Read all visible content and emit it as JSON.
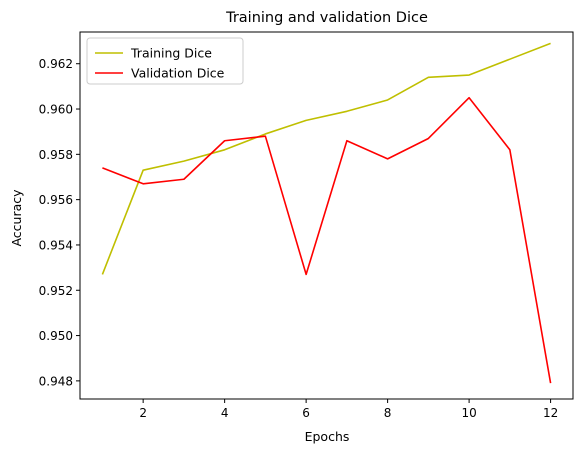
{
  "chart_data": {
    "type": "line",
    "title": "Training and validation Dice",
    "xlabel": "Epochs",
    "ylabel": "Accuracy",
    "x": [
      1,
      2,
      3,
      4,
      5,
      6,
      7,
      8,
      9,
      10,
      11,
      12
    ],
    "xlim": [
      0.45,
      12.55
    ],
    "ylim": [
      0.9472,
      0.9634
    ],
    "xticks": [
      2,
      4,
      6,
      8,
      10,
      12
    ],
    "yticks": [
      0.948,
      0.95,
      0.952,
      0.954,
      0.956,
      0.958,
      0.96,
      0.962
    ],
    "legend_position": "top-left",
    "grid": false,
    "series": [
      {
        "name": "Training Dice",
        "color": "#bfbf00",
        "values": [
          0.9527,
          0.9573,
          0.9577,
          0.9582,
          0.9589,
          0.9595,
          0.9599,
          0.9604,
          0.9614,
          0.9615,
          0.9622,
          0.9629
        ]
      },
      {
        "name": "Validation Dice",
        "color": "#ff0000",
        "values": [
          0.9574,
          0.9567,
          0.9569,
          0.9586,
          0.9588,
          0.9527,
          0.9586,
          0.9578,
          0.9587,
          0.9605,
          0.9582,
          0.9479
        ]
      }
    ]
  }
}
